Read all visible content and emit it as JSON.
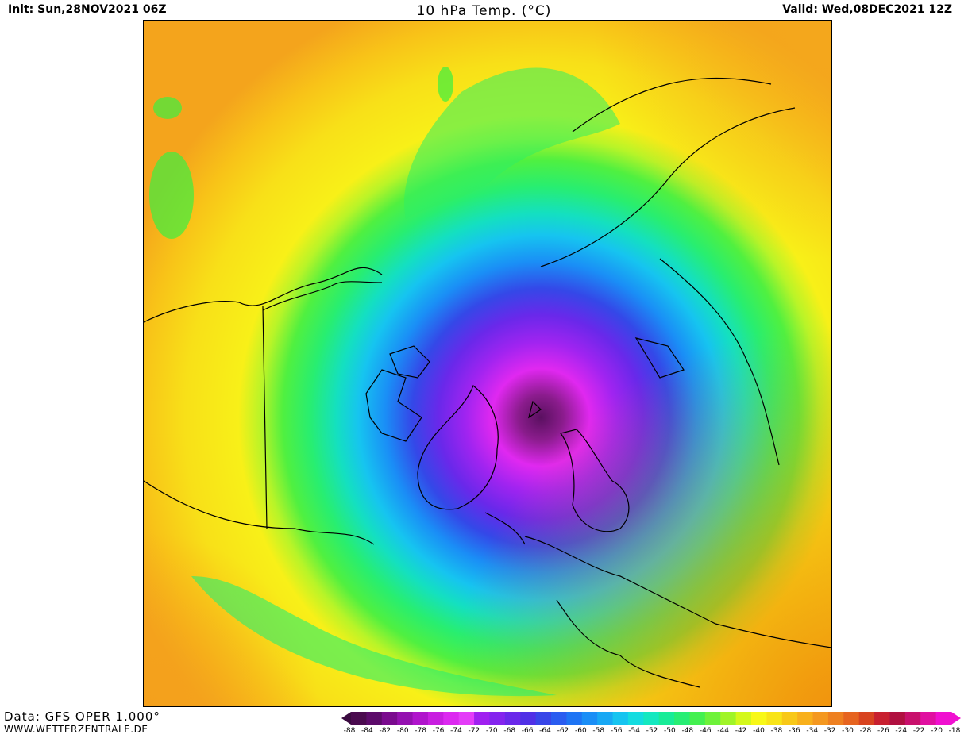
{
  "header": {
    "init": "Init: Sun,28NOV2021 06Z",
    "title": "10 hPa Temp. (°C)",
    "valid": "Valid: Wed,08DEC2021 12Z"
  },
  "footer": {
    "data_source": "Data: GFS OPER 1.000°",
    "website": "WWW.WETTERZENTRALE.DE"
  },
  "colorbar": {
    "labels": [
      "-88",
      "-84",
      "-82",
      "-80",
      "-78",
      "-76",
      "-74",
      "-72",
      "-70",
      "-68",
      "-66",
      "-64",
      "-62",
      "-60",
      "-58",
      "-56",
      "-54",
      "-52",
      "-50",
      "-48",
      "-46",
      "-44",
      "-42",
      "-40",
      "-38",
      "-36",
      "-34",
      "-32",
      "-30",
      "-28",
      "-26",
      "-24",
      "-22",
      "-20",
      "-18"
    ],
    "colors": [
      "#4a0a4e",
      "#5c0a6a",
      "#7a0a8e",
      "#9410b0",
      "#b014cc",
      "#c81ee0",
      "#dc28f0",
      "#e43cf8",
      "#a020f0",
      "#8424ee",
      "#6a28ea",
      "#5030e6",
      "#3846e8",
      "#2a5cf0",
      "#1e74f4",
      "#1a8ef6",
      "#18a8f4",
      "#16c4f0",
      "#14dce0",
      "#14e8c0",
      "#18ec98",
      "#28ee74",
      "#44f050",
      "#6ef23a",
      "#a0f428",
      "#d4f81c",
      "#f8f818",
      "#f8e418",
      "#f8c818",
      "#f8b01c",
      "#f49820",
      "#ee8020",
      "#e66420",
      "#d84420",
      "#c82030",
      "#b01040",
      "#c8106c",
      "#e010a0",
      "#f010d0"
    ]
  },
  "map": {
    "variable": "10 hPa temperature",
    "cold_core_color": "#5a1060",
    "background_color": "#f8f018"
  }
}
